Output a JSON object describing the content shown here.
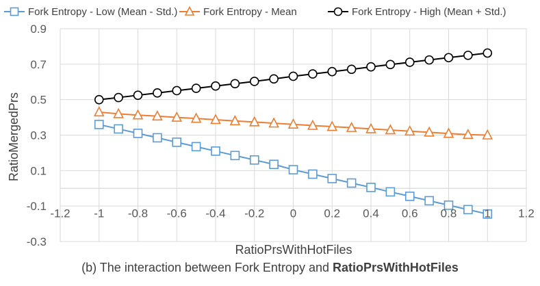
{
  "caption": {
    "prefix": "(b) The interaction between Fork Entropy and ",
    "bold": "RatioPrsWithHotFiles"
  },
  "chart_data": {
    "type": "line",
    "xlabel": "RatioPrsWithHotFiles",
    "ylabel": "RatioMergedPrs",
    "xlim": [
      -1.2,
      1.2
    ],
    "ylim": [
      -0.3,
      0.9
    ],
    "xticks": [
      -1.2,
      -1,
      -0.8,
      -0.6,
      -0.4,
      -0.2,
      0,
      0.2,
      0.4,
      0.6,
      0.8,
      1,
      1.2
    ],
    "xtick_labels": [
      "-1.2",
      "-1",
      "-0.8",
      "-0.6",
      "-0.4",
      "-0.2",
      "0",
      "0.2",
      "0.4",
      "0.6",
      "0.8",
      "1",
      "1.2"
    ],
    "yticks": [
      -0.3,
      -0.1,
      0.1,
      0.3,
      0.5,
      0.7,
      0.9
    ],
    "ytick_labels": [
      "-0.3",
      "-0.1",
      "0.1",
      "0.3",
      "0.5",
      "0.7",
      "0.9"
    ],
    "grid": true,
    "legend_position": "top",
    "x": [
      -1,
      -0.9,
      -0.8,
      -0.7,
      -0.6,
      -0.5,
      -0.4,
      -0.3,
      -0.2,
      -0.1,
      0,
      0.1,
      0.2,
      0.3,
      0.4,
      0.5,
      0.6,
      0.7,
      0.8,
      0.9,
      1
    ],
    "series": [
      {
        "name": "Fork Entropy - Low (Mean - Std.)",
        "color": "#5b9bd5",
        "marker": "square",
        "values": [
          0.36,
          0.335,
          0.31,
          0.285,
          0.26,
          0.235,
          0.21,
          0.185,
          0.16,
          0.135,
          0.105,
          0.08,
          0.055,
          0.03,
          0.005,
          -0.02,
          -0.045,
          -0.07,
          -0.095,
          -0.12,
          -0.145
        ]
      },
      {
        "name": "Fork Entropy - Mean",
        "color": "#ed7d31",
        "marker": "triangle",
        "values": [
          0.43,
          0.42,
          0.413,
          0.407,
          0.4,
          0.394,
          0.387,
          0.38,
          0.374,
          0.367,
          0.361,
          0.354,
          0.348,
          0.342,
          0.335,
          0.329,
          0.322,
          0.316,
          0.309,
          0.303,
          0.3
        ]
      },
      {
        "name": "Fork Entropy - High (Mean + Std.)",
        "color": "#000000",
        "marker": "circle",
        "values": [
          0.5,
          0.512,
          0.525,
          0.538,
          0.551,
          0.564,
          0.577,
          0.59,
          0.603,
          0.617,
          0.632,
          0.645,
          0.658,
          0.671,
          0.685,
          0.698,
          0.711,
          0.724,
          0.737,
          0.75,
          0.763
        ]
      }
    ]
  }
}
